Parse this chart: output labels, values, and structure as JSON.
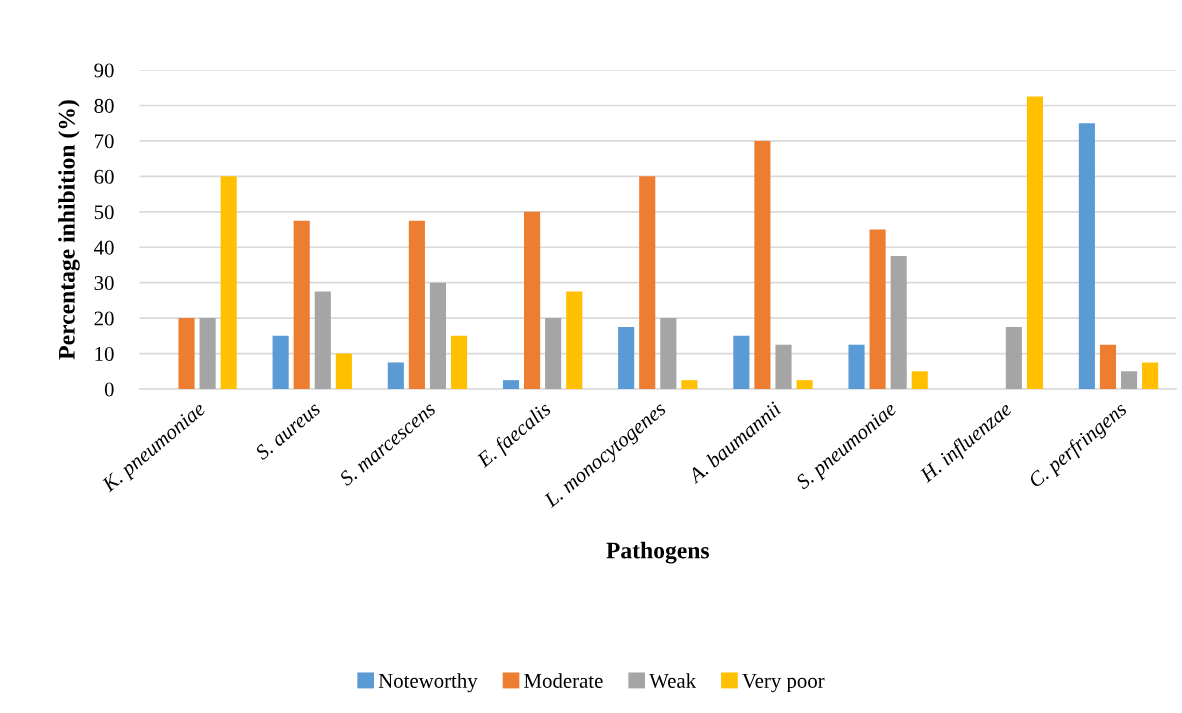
{
  "chart_data": {
    "type": "bar",
    "xlabel": "Pathogens",
    "ylabel": "Percentage inhibition (%)",
    "categories": [
      "K. pneumoniae",
      "S. aureus",
      "S. marcescens",
      "E. faecalis",
      "L. monocytogenes",
      "A. baumannii",
      "S. pneumoniae",
      "H. influenzae",
      "C. perfringens"
    ],
    "series": [
      {
        "name": "Noteworthy",
        "color": "#5b9bd5",
        "values": [
          0,
          15,
          7.5,
          2.5,
          17.5,
          15,
          12.5,
          0,
          75
        ]
      },
      {
        "name": "Moderate",
        "color": "#ed7d31",
        "values": [
          20,
          47.5,
          47.5,
          50,
          60,
          70,
          45,
          0,
          12.5
        ]
      },
      {
        "name": "Weak",
        "color": "#a5a5a5",
        "values": [
          20,
          27.5,
          30,
          20,
          20,
          12.5,
          37.5,
          17.5,
          5
        ]
      },
      {
        "name": "Very poor",
        "color": "#ffc000",
        "values": [
          60,
          10,
          15,
          27.5,
          2.5,
          2.5,
          5,
          82.5,
          7.5
        ]
      }
    ],
    "ylim": [
      0,
      90
    ],
    "yticks": [
      0,
      10,
      20,
      30,
      40,
      50,
      60,
      70,
      80,
      90
    ],
    "grid": "y",
    "legend": "bottom"
  }
}
